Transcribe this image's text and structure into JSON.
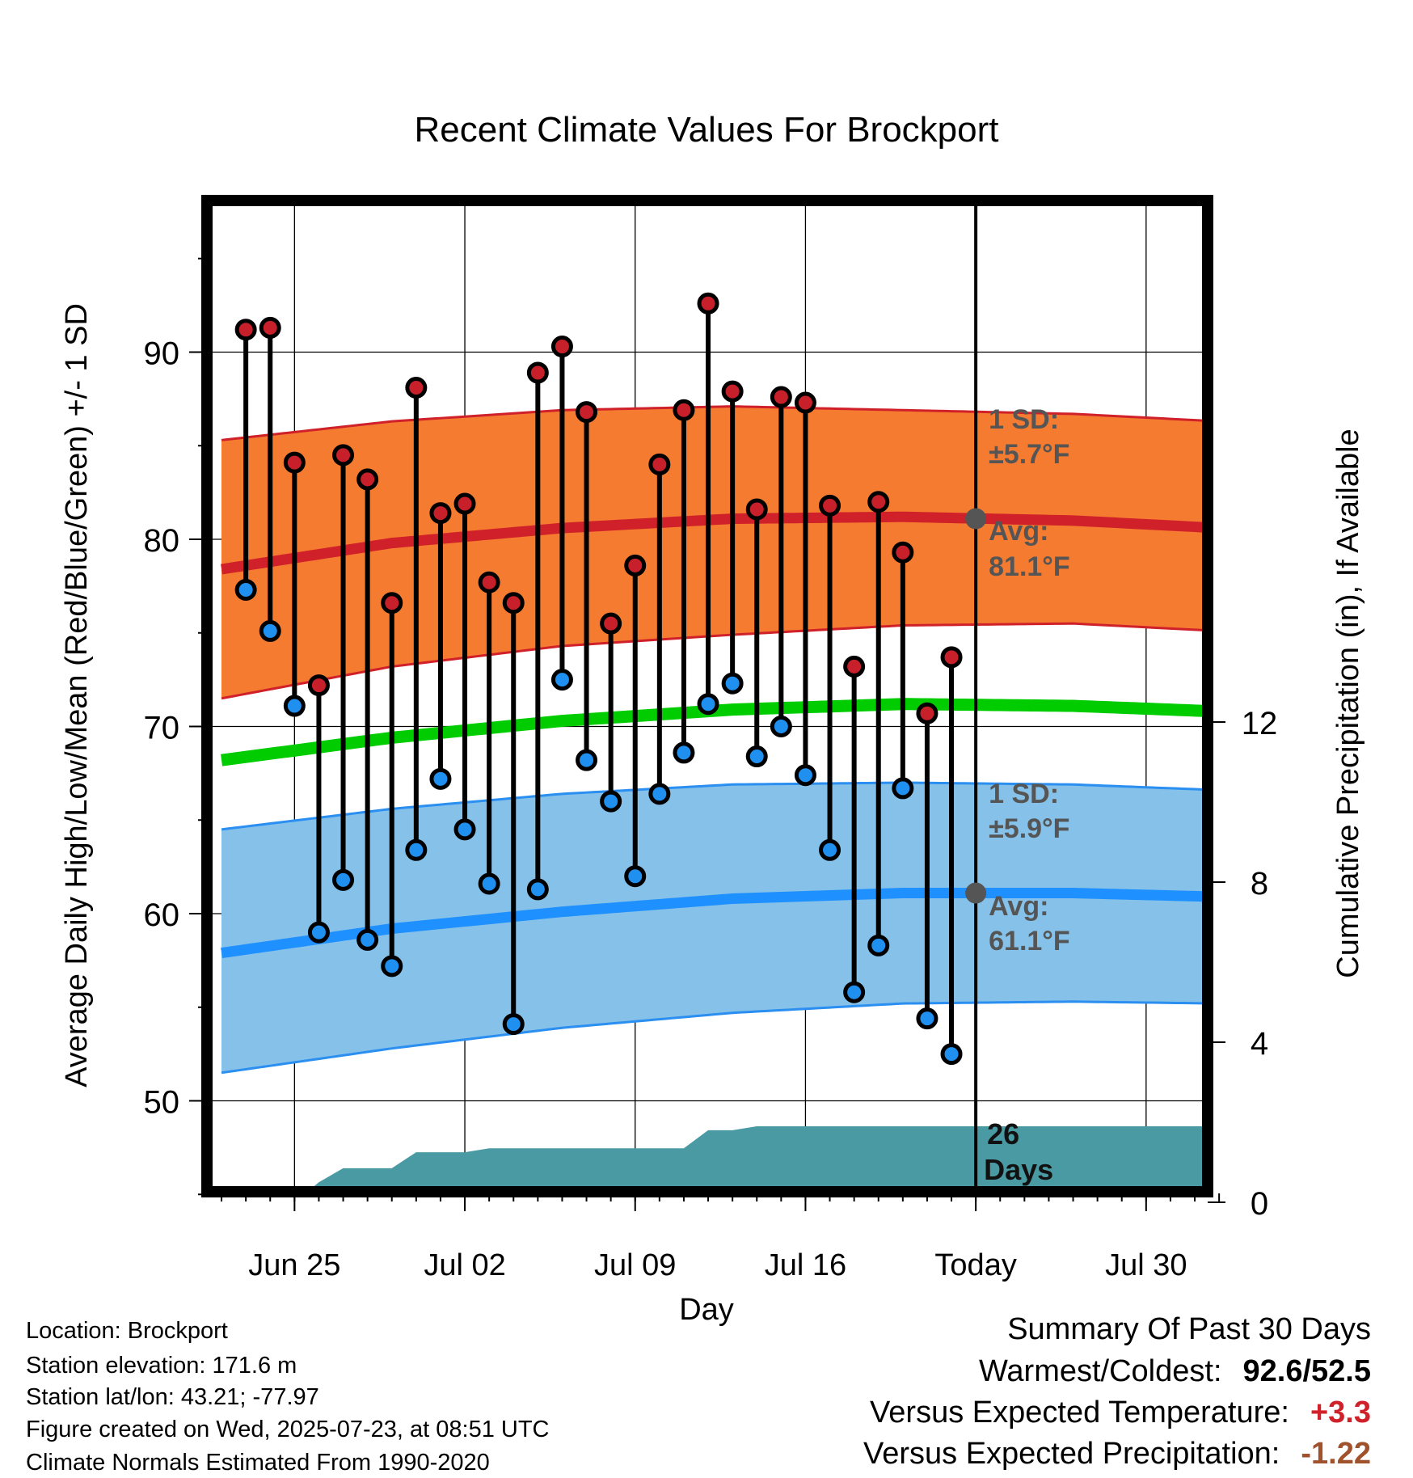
{
  "chart_data": {
    "type": "line",
    "title": "Recent Climate Values For Brockport",
    "xlabel": "Day",
    "ylabel": "Average Daily High/Low/Mean (Red/Blue/Green) +/- 1 SD",
    "y2label": "Cumulative Precipitation (in), If Available",
    "ylim": [
      44.6,
      97.7
    ],
    "y2lim": [
      0,
      24.5
    ],
    "y_ticks": [
      50,
      60,
      70,
      80,
      90
    ],
    "y2_ticks": [
      0,
      4,
      8,
      12
    ],
    "x_ticks": [
      {
        "day": 4,
        "label": "Jun 25"
      },
      {
        "day": 11,
        "label": "Jul 02"
      },
      {
        "day": 18,
        "label": "Jul 09"
      },
      {
        "day": 25,
        "label": "Jul 16"
      },
      {
        "day": 32,
        "label": "Today"
      },
      {
        "day": 39,
        "label": "Jul 30"
      }
    ],
    "x_range_days": [
      1,
      42
    ],
    "x_day0_date": "2025-06-21",
    "grid": true,
    "today_day": 32,
    "daily_observed": {
      "days": [
        2,
        3,
        4,
        5,
        6,
        7,
        8,
        9,
        10,
        11,
        12,
        13,
        14,
        15,
        16,
        17,
        18,
        19,
        20,
        21,
        22,
        23,
        24,
        25,
        26,
        27,
        28,
        29,
        30,
        31
      ],
      "highs": [
        91.2,
        91.3,
        84.1,
        72.2,
        84.5,
        83.2,
        76.6,
        88.1,
        81.4,
        81.9,
        77.7,
        76.6,
        88.9,
        90.3,
        86.8,
        75.5,
        78.6,
        84.0,
        86.9,
        92.6,
        87.9,
        81.6,
        87.6,
        87.3,
        81.8,
        73.2,
        82.0,
        79.3,
        70.7,
        73.7
      ],
      "lows": [
        77.3,
        75.1,
        71.1,
        59.0,
        61.8,
        58.6,
        57.2,
        63.4,
        67.2,
        64.5,
        61.6,
        54.1,
        61.3,
        72.5,
        68.2,
        66.0,
        62.0,
        66.4,
        68.6,
        71.2,
        72.3,
        68.4,
        70.0,
        67.4,
        63.4,
        55.8,
        58.3,
        66.7,
        54.4,
        52.5
      ]
    },
    "normals": {
      "days": [
        1,
        8,
        15,
        22,
        29,
        36,
        42
      ],
      "avg_high": [
        78.4,
        79.8,
        80.6,
        81.1,
        81.2,
        81.0,
        80.6
      ],
      "avg_high_upper": [
        85.3,
        86.3,
        86.9,
        87.1,
        86.9,
        86.7,
        86.3
      ],
      "avg_high_lower": [
        71.5,
        73.2,
        74.3,
        74.9,
        75.4,
        75.5,
        75.1
      ],
      "avg_low": [
        57.9,
        59.2,
        60.1,
        60.8,
        61.1,
        61.1,
        60.9
      ],
      "avg_low_upper": [
        64.5,
        65.6,
        66.4,
        66.9,
        67.0,
        66.9,
        66.6
      ],
      "avg_low_lower": [
        51.5,
        52.8,
        53.9,
        54.7,
        55.2,
        55.3,
        55.2
      ],
      "avg_mean": [
        68.2,
        69.4,
        70.3,
        70.9,
        71.2,
        71.1,
        70.8
      ]
    },
    "series": [
      {
        "name": "High",
        "color": "#d0202a"
      },
      {
        "name": "Low",
        "color": "#1e90ff"
      },
      {
        "name": "Mean",
        "color": "#00cc00"
      }
    ],
    "precipitation_cumulative": {
      "days": [
        4,
        5,
        6,
        7,
        8,
        9,
        10,
        11,
        12,
        13,
        18,
        19,
        20,
        21,
        22,
        23,
        42
      ],
      "values": [
        0.0,
        0.5,
        0.85,
        0.85,
        0.85,
        1.25,
        1.25,
        1.25,
        1.35,
        1.35,
        1.35,
        1.35,
        1.35,
        1.8,
        1.8,
        1.9,
        1.9
      ]
    },
    "annotations": {
      "high_sd_label": "1 SD:",
      "high_sd_value": "±5.7°F",
      "high_avg_label": "Avg:",
      "high_avg_value": "81.1°F",
      "low_sd_label": "1 SD:",
      "low_sd_value": "±5.9°F",
      "low_avg_label": "Avg:",
      "low_avg_value": "61.1°F",
      "days_number": "26",
      "days_label": "Days",
      "today_high_avg": 81.1,
      "today_low_avg": 61.1
    }
  },
  "footer": {
    "location": "Location: Brockport",
    "elevation": "Station elevation: 171.6 m",
    "latlon": "Station lat/lon: 43.21; -77.97",
    "created": "Figure created on Wed, 2025-07-23, at 08:51 UTC",
    "normals": "Climate Normals Estimated From 1990-2020"
  },
  "summary": {
    "title": "Summary Of Past 30 Days",
    "warm_cold_label": "Warmest/Coldest:",
    "warm_cold_value": "92.6/52.5",
    "temp_label": "Versus Expected Temperature:",
    "temp_value": "+3.3",
    "temp_color": "#d0202a",
    "precip_label": "Versus Expected Precipitation:",
    "precip_value": "-1.22",
    "precip_color": "#a0522d"
  },
  "colors": {
    "high_band": "#f47b30",
    "high_line": "#d0202a",
    "low_band": "#85c1e9",
    "low_line": "#1e90ff",
    "low_band_edge": "#2a8ff0",
    "mean_line": "#00cc00",
    "precip_fill": "#4a9aa4",
    "annotation_text": "#555555",
    "high_dot": "#c8202a",
    "low_dot": "#2090f0"
  }
}
